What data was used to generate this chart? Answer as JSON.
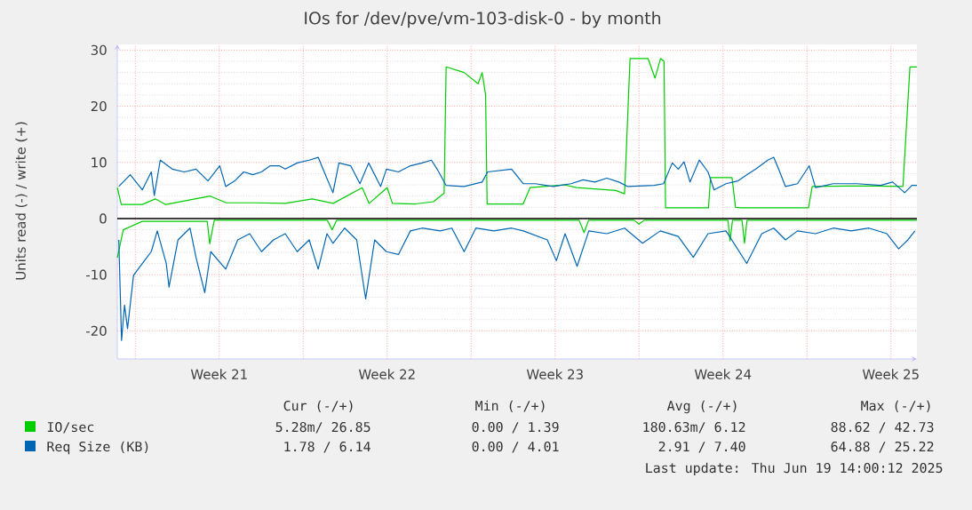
{
  "chart_data": {
    "type": "line",
    "title": "IOs for /dev/pve/vm-103-disk-0 - by month",
    "ylabel": "Units read (-) / write (+)",
    "xlim": [
      "2025-05-17T06:00",
      "2025-06-19T14:00"
    ],
    "ylim": [
      -25,
      31
    ],
    "xticks": [
      {
        "value": "2025-05-18",
        "label": null
      },
      {
        "value": "2025-05-21T12:00",
        "label": "Week 21"
      },
      {
        "value": "2025-05-25",
        "label": null
      },
      {
        "value": "2025-05-28T12:00",
        "label": "Week 22"
      },
      {
        "value": "2025-06-01",
        "label": null
      },
      {
        "value": "2025-06-04T12:00",
        "label": "Week 23"
      },
      {
        "value": "2025-06-08",
        "label": null
      },
      {
        "value": "2025-06-11T12:00",
        "label": "Week 24"
      },
      {
        "value": "2025-06-15",
        "label": null
      },
      {
        "value": "2025-06-18T12:00",
        "label": "Week 25"
      }
    ],
    "yticks": [
      -20,
      -10,
      0,
      10,
      20,
      30
    ],
    "grid": true,
    "legend": "bottom left",
    "series": [
      {
        "name": "IO/sec",
        "color": "#00cc00",
        "x": [
          "2025-05-17T06:00",
          "2025-05-17T10:00",
          "2025-05-18T07:00",
          "2025-05-18T20:00",
          "2025-05-19T06:30",
          "2025-05-21T03:00",
          "2025-05-21T19:00",
          "2025-05-22T23:45",
          "2025-05-24T06:00",
          "2025-05-25T09:00",
          "2025-05-26T06:00",
          "2025-05-27T11:00",
          "2025-05-27T18:00",
          "2025-05-28T12:00",
          "2025-05-28T17:15",
          "2025-05-29T16:30",
          "2025-05-30T10:15",
          "2025-05-30T21:00",
          "2025-05-30T23:00",
          "2025-05-31T17:00",
          "2025-06-01T07:00",
          "2025-06-01T11:00",
          "2025-06-01T14:30",
          "2025-06-01T16:00",
          "2025-06-03T04:00",
          "2025-06-03T11:00",
          "2025-06-04T21:00",
          "2025-06-05T09:30",
          "2025-06-07T00:45",
          "2025-06-07T09:30",
          "2025-06-07T15:00",
          "2025-06-08T09:00",
          "2025-06-08T16:00",
          "2025-06-08T21:30",
          "2025-06-09T01:00",
          "2025-06-09T02:30",
          "2025-06-10T21:30",
          "2025-06-10T23:30",
          "2025-06-11T21:00",
          "2025-06-12T00:30",
          "2025-06-12T06:00",
          "2025-06-15T01:30",
          "2025-06-15T05:15",
          "2025-06-16T17:00",
          "2025-06-17T20:00",
          "2025-06-19T00:00",
          "2025-06-19T07:00",
          "2025-06-19T14:00"
        ],
        "values": [
          5.5,
          2.5,
          2.5,
          3.5,
          2.5,
          4,
          2.8,
          2.8,
          2.7,
          3.5,
          2.7,
          5.5,
          2.7,
          5.5,
          2.7,
          2.6,
          3,
          4.5,
          27,
          26,
          24,
          26,
          22,
          2.6,
          2.6,
          5.5,
          6,
          5.5,
          5,
          4.4,
          28.5,
          28.5,
          25,
          28.5,
          28,
          1.9,
          1.9,
          7.3,
          7.3,
          2,
          1.9,
          1.9,
          5.7,
          5.8,
          5.8,
          5.7,
          27,
          27
        ]
      },
      {
        "color": "#00cc00",
        "x": [
          "2025-05-17T06:00",
          "2025-05-17T12:00",
          "2025-05-18T07:00",
          "2025-05-21T00:00",
          "2025-05-21T02:30",
          "2025-05-21T07:00",
          "2025-05-26T00:00",
          "2025-05-26T05:00",
          "2025-05-26T09:30",
          "2025-06-01T00:00",
          "2025-06-05T12:00",
          "2025-06-05T17:00",
          "2025-06-05T21:30",
          "2025-06-07T19:00",
          "2025-06-08T00:00",
          "2025-06-08T05:00",
          "2025-06-11T17:00",
          "2025-06-11T19:00",
          "2025-06-11T21:30",
          "2025-06-12T07:00",
          "2025-06-12T09:30",
          "2025-06-12T12:00",
          "2025-06-19T14:00"
        ],
        "values": [
          -7,
          -2,
          -0.5,
          -0.5,
          -4.5,
          -0.3,
          -0.3,
          -2,
          -0.3,
          -0.3,
          -0.3,
          -2.5,
          -0.3,
          -0.3,
          -1,
          -0.3,
          -0.3,
          -4,
          -0.3,
          -0.3,
          -4.4,
          -0.3,
          -0.3
        ]
      },
      {
        "name": "Req Size (KB)",
        "color": "#0066b3",
        "x": [
          "2025-05-17T07:30",
          "2025-05-17T19:00",
          "2025-05-18T07:00",
          "2025-05-18T16:00",
          "2025-05-18T19:00",
          "2025-05-19T01:00",
          "2025-05-19T13:00",
          "2025-05-20T01:00",
          "2025-05-20T12:45",
          "2025-05-21T00:45",
          "2025-05-21T12:30",
          "2025-05-21T18:30",
          "2025-05-22T03:30",
          "2025-05-22T12:30",
          "2025-05-22T21:30",
          "2025-05-23T06:15",
          "2025-05-23T15:00",
          "2025-05-24T00:00",
          "2025-05-24T06:00",
          "2025-05-24T18:00",
          "2025-05-25T06:00",
          "2025-05-25T15:00",
          "2025-05-25T21:00",
          "2025-05-26T05:45",
          "2025-05-26T11:45",
          "2025-05-26T23:30",
          "2025-05-27T08:45",
          "2025-05-27T17:30",
          "2025-05-28T05:30",
          "2025-05-28T11:15",
          "2025-05-28T23:15",
          "2025-05-29T11:15",
          "2025-05-29T23:00",
          "2025-05-30T08:15",
          "2025-05-30T14:00",
          "2025-05-30T23:00",
          "2025-05-31T17:00",
          "2025-06-01T11:00",
          "2025-06-01T16:30",
          "2025-06-02T16:30",
          "2025-06-03T04:15",
          "2025-06-03T16:15",
          "2025-06-04T10:00",
          "2025-06-05T04:00",
          "2025-06-05T16:00",
          "2025-06-06T03:45",
          "2025-06-06T15:45",
          "2025-06-07T03:45",
          "2025-06-07T12:45",
          "2025-06-08T15:15",
          "2025-06-09T00:30",
          "2025-06-09T09:15",
          "2025-06-09T15:15",
          "2025-06-09T21:00",
          "2025-06-10T03:00",
          "2025-06-10T12:15",
          "2025-06-10T21:00",
          "2025-06-11T03:00",
          "2025-06-11T15:00",
          "2025-06-12T03:00",
          "2025-06-12T11:45",
          "2025-06-12T20:45",
          "2025-06-13T08:45",
          "2025-06-13T14:45",
          "2025-06-13T20:45",
          "2025-06-14T02:30",
          "2025-06-14T14:30",
          "2025-06-15T02:15",
          "2025-06-15T08:30",
          "2025-06-16T02:15",
          "2025-06-17T02:00",
          "2025-06-18T01:45",
          "2025-06-18T13:45",
          "2025-06-19T01:45",
          "2025-06-19T09:00",
          "2025-06-19T14:00"
        ],
        "values": [
          5.7,
          7.8,
          5.1,
          8.3,
          4.1,
          10.4,
          8.8,
          8.3,
          8.8,
          6.7,
          9.4,
          5.7,
          6.7,
          8.3,
          7.8,
          8.3,
          9.4,
          9.4,
          8.8,
          9.9,
          10.4,
          10.9,
          8.3,
          4.6,
          9.9,
          9.4,
          6.2,
          9.9,
          5.7,
          8.8,
          8.3,
          9.4,
          9.9,
          10.4,
          8.8,
          5.9,
          5.7,
          6.5,
          8.3,
          8.8,
          6.2,
          6.2,
          5.7,
          6.2,
          6.9,
          6.5,
          7.2,
          6.5,
          5.7,
          5.9,
          6.2,
          9.9,
          8.8,
          10.1,
          6.5,
          10.4,
          8.3,
          5.1,
          6.2,
          6.7,
          7.8,
          8.8,
          10.4,
          10.9,
          8.3,
          5.7,
          6.2,
          9.4,
          5.5,
          6.2,
          6.2,
          5.9,
          6.5,
          4.6,
          5.9,
          5.9
        ]
      },
      {
        "color": "#0066b3",
        "x": [
          "2025-05-17T07:30",
          "2025-05-17T10:15",
          "2025-05-17T13:15",
          "2025-05-17T16:15",
          "2025-05-17T22:15",
          "2025-05-18T07:00",
          "2025-05-18T16:00",
          "2025-05-18T22:00",
          "2025-05-19T07:00",
          "2025-05-19T09:45",
          "2025-05-19T18:45",
          "2025-05-20T06:45",
          "2025-05-20T12:45",
          "2025-05-20T21:30",
          "2025-05-21T03:30",
          "2025-05-21T18:30",
          "2025-05-22T06:30",
          "2025-05-22T18:30",
          "2025-05-23T06:15",
          "2025-05-23T18:15",
          "2025-05-24T06:00",
          "2025-05-24T18:00",
          "2025-05-25T06:00",
          "2025-05-25T15:00",
          "2025-05-25T23:45",
          "2025-05-26T05:45",
          "2025-05-26T17:30",
          "2025-05-27T05:30",
          "2025-05-27T14:30",
          "2025-05-27T23:30",
          "2025-05-28T11:15",
          "2025-05-28T23:15",
          "2025-05-29T11:15",
          "2025-05-29T23:00",
          "2025-05-30T17:00",
          "2025-05-31T04:45",
          "2025-05-31T17:00",
          "2025-06-01T04:45",
          "2025-06-01T22:45",
          "2025-06-02T16:30",
          "2025-06-03T04:15",
          "2025-06-04T04:15",
          "2025-06-04T13:15",
          "2025-06-04T22:00",
          "2025-06-05T10:00",
          "2025-06-05T21:45",
          "2025-06-06T15:45",
          "2025-06-07T09:30",
          "2025-06-08T03:30",
          "2025-06-08T21:15",
          "2025-06-09T15:15",
          "2025-06-10T06:15",
          "2025-06-10T21:00",
          "2025-06-11T15:00",
          "2025-06-12T11:45",
          "2025-06-13T02:45",
          "2025-06-13T14:45",
          "2025-06-14T02:30",
          "2025-06-14T14:30",
          "2025-06-15T08:30",
          "2025-06-16T02:15",
          "2025-06-16T20:15",
          "2025-06-17T14:00",
          "2025-06-18T08:00",
          "2025-06-18T19:45",
          "2025-06-19T05:00",
          "2025-06-19T12:00"
        ],
        "values": [
          -3.8,
          -21.7,
          -15.4,
          -19.6,
          -10.1,
          -8,
          -5.9,
          -2.2,
          -8,
          -12.2,
          -3.8,
          -1.7,
          -6.9,
          -13.2,
          -5.9,
          -9,
          -3.8,
          -2.7,
          -5.9,
          -3.8,
          -2.7,
          -5.9,
          -3.8,
          -9,
          -2.7,
          -4.4,
          -1.7,
          -3.8,
          -14.3,
          -3.8,
          -5.9,
          -6.4,
          -2.2,
          -1.7,
          -2.2,
          -1.7,
          -5.9,
          -1.7,
          -2.2,
          -1.7,
          -2.2,
          -3.8,
          -7.5,
          -2.7,
          -8.5,
          -2.2,
          -2.7,
          -1.7,
          -4.4,
          -2.2,
          -3.2,
          -6.9,
          -2.7,
          -2.2,
          -8,
          -2.7,
          -1.7,
          -3.8,
          -2.2,
          -2.7,
          -1.7,
          -2.2,
          -1.7,
          -2.7,
          -5.4,
          -3.8,
          -2.2
        ]
      }
    ],
    "annotations": [
      "Cur (-/+)",
      "Min (-/+)",
      "Avg (-/+)",
      "Max (-/+)",
      "5.28m/ 26.85",
      "0.00 / 1.39",
      "180.63m/ 6.12",
      "88.62 / 42.73",
      "1.78 / 6.14",
      "0.00 / 4.01",
      "2.91 / 7.40",
      "64.88 / 25.22",
      "Last update: Thu Jun 19 14:00:12 2025"
    ]
  }
}
